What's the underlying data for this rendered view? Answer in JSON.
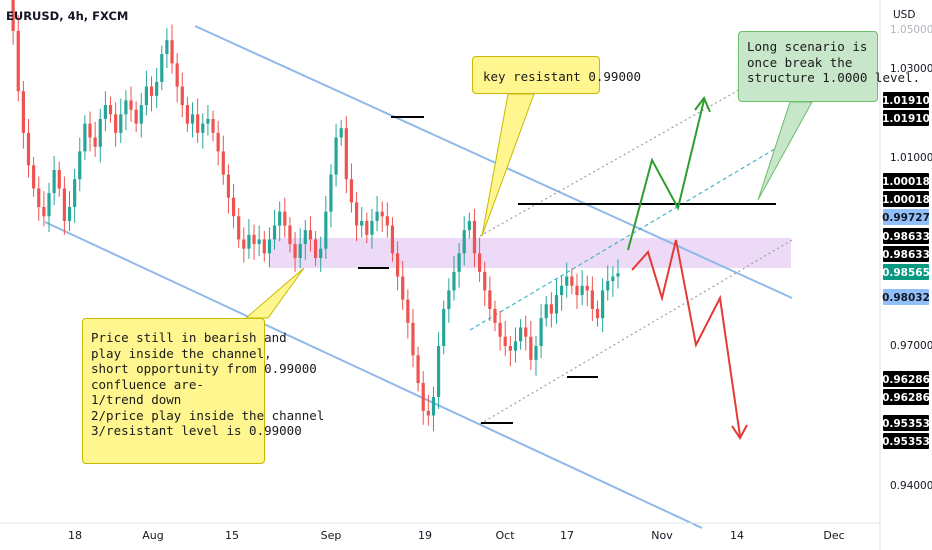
{
  "symbol": "EURUSD, 4h, FXCM",
  "currency": "USD",
  "colors": {
    "candle_up": "#26a69a",
    "candle_down": "#ef5350",
    "channel": "#8fb9e8",
    "zone": "#e9d3f5",
    "key_note_bg": "#fff68f",
    "long_note_bg": "#c8e6c9",
    "arrow_green": "#2e9e2e",
    "arrow_red": "#e53935",
    "level_line": "#000000",
    "dashed_green": "#3fb8c9"
  },
  "notes": {
    "key_resistant": "key resistant 0.99000",
    "long_scenario": "Long scenario is\nonce break the\nstructure 1.0000 level.",
    "analysis": "Price still in bearish and\nplay inside the channel,\nshort opportunity from 0.99000\nconfluence are-\n1/trend down\n2/price play inside the channel\n3/resistant level is 0.99000"
  },
  "chart_data": {
    "type": "candlestick",
    "title": "EURUSD, 4h, FXCM",
    "x_tick_labels": [
      "18",
      "Aug",
      "15",
      "Sep",
      "19",
      "Oct",
      "17",
      "Nov",
      "14",
      "Dec"
    ],
    "y_tick_labels": [
      "1.03000",
      "1.01000",
      "0.97000",
      "0.94000"
    ],
    "price_tags": [
      {
        "label": "1.01910",
        "style": "dark"
      },
      {
        "label": "1.01910",
        "style": "dark"
      },
      {
        "label": "1.00018",
        "style": "dark"
      },
      {
        "label": "1.00018",
        "style": "dark"
      },
      {
        "label": "0.99727",
        "style": "light-blue"
      },
      {
        "label": "0.98633",
        "style": "dark"
      },
      {
        "label": "0.98633",
        "style": "dark"
      },
      {
        "label": "0.98565",
        "style": "green"
      },
      {
        "label": "0.98032",
        "style": "light-blue"
      },
      {
        "label": "0.96286",
        "style": "dark"
      },
      {
        "label": "0.96286",
        "style": "dark"
      },
      {
        "label": "0.95353",
        "style": "dark"
      },
      {
        "label": "0.95353",
        "style": "dark"
      }
    ],
    "ylim": [
      0.935,
      1.047
    ],
    "price_path": [
      1.046,
      1.038,
      1.025,
      1.016,
      1.009,
      1.004,
      1.0,
      0.998,
      1.003,
      1.008,
      1.004,
      0.997,
      1.0,
      1.006,
      1.012,
      1.018,
      1.015,
      1.013,
      1.019,
      1.022,
      1.02,
      1.016,
      1.02,
      1.023,
      1.021,
      1.018,
      1.022,
      1.026,
      1.024,
      1.027,
      1.033,
      1.036,
      1.031,
      1.026,
      1.022,
      1.018,
      1.02,
      1.016,
      1.018,
      1.019,
      1.016,
      1.012,
      1.007,
      1.002,
      0.998,
      0.993,
      0.991,
      0.994,
      0.992,
      0.993,
      0.99,
      0.993,
      0.996,
      0.999,
      0.996,
      0.992,
      0.989,
      0.992,
      0.995,
      0.993,
      0.989,
      0.991,
      0.999,
      1.007,
      1.015,
      1.017,
      1.006,
      1.001,
      0.996,
      0.997,
      0.994,
      0.997,
      0.999,
      0.998,
      0.996,
      0.99,
      0.985,
      0.98,
      0.975,
      0.968,
      0.962,
      0.956,
      0.955,
      0.959,
      0.97,
      0.978,
      0.982,
      0.986,
      0.99,
      0.995,
      0.997,
      0.99,
      0.986,
      0.982,
      0.978,
      0.975,
      0.972,
      0.97,
      0.969,
      0.971,
      0.974,
      0.972,
      0.967,
      0.97,
      0.976,
      0.979,
      0.977,
      0.981,
      0.983,
      0.985,
      0.983,
      0.981,
      0.983,
      0.982,
      0.978,
      0.976,
      0.982,
      0.984,
      0.985,
      0.9857
    ],
    "levels": {
      "resistance": 0.99,
      "structure": 1.0
    },
    "grid": false,
    "legend": "none"
  }
}
